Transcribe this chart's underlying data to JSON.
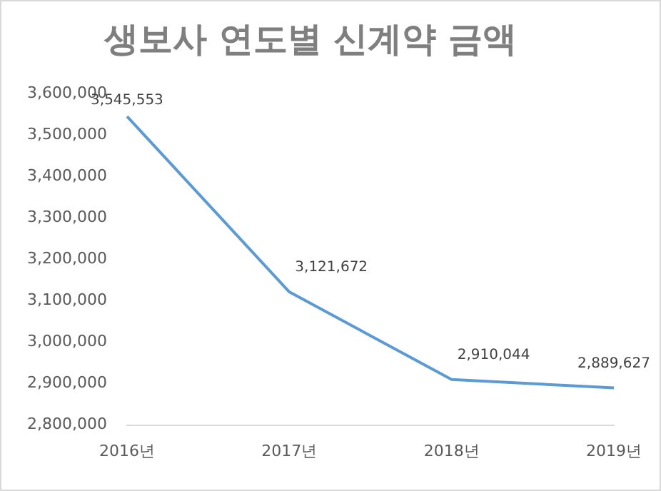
{
  "chart_data": {
    "type": "line",
    "title": "생보사 연도별 신계약 금액",
    "categories": [
      "2016년",
      "2017년",
      "2018년",
      "2019년"
    ],
    "series": [
      {
        "color": "#5b9bd5",
        "values": [
          3545553,
          3121672,
          2910044,
          2889627
        ],
        "value_labels": [
          "3,545,553",
          "3,121,672",
          "2,910,044",
          "2,889,627"
        ]
      }
    ],
    "ylim": [
      2800000,
      3600000
    ],
    "yticks": [
      {
        "value": 2800000,
        "label": "2,800,000"
      },
      {
        "value": 2900000,
        "label": "2,900,000"
      },
      {
        "value": 3000000,
        "label": "3,000,000"
      },
      {
        "value": 3100000,
        "label": "3,100,000"
      },
      {
        "value": 3200000,
        "label": "3,200,000"
      },
      {
        "value": 3300000,
        "label": "3,300,000"
      },
      {
        "value": 3400000,
        "label": "3,400,000"
      },
      {
        "value": 3500000,
        "label": "3,500,000"
      },
      {
        "value": 3600000,
        "label": "3,600,000"
      }
    ],
    "grid": false,
    "legend": false,
    "marker": "none"
  }
}
